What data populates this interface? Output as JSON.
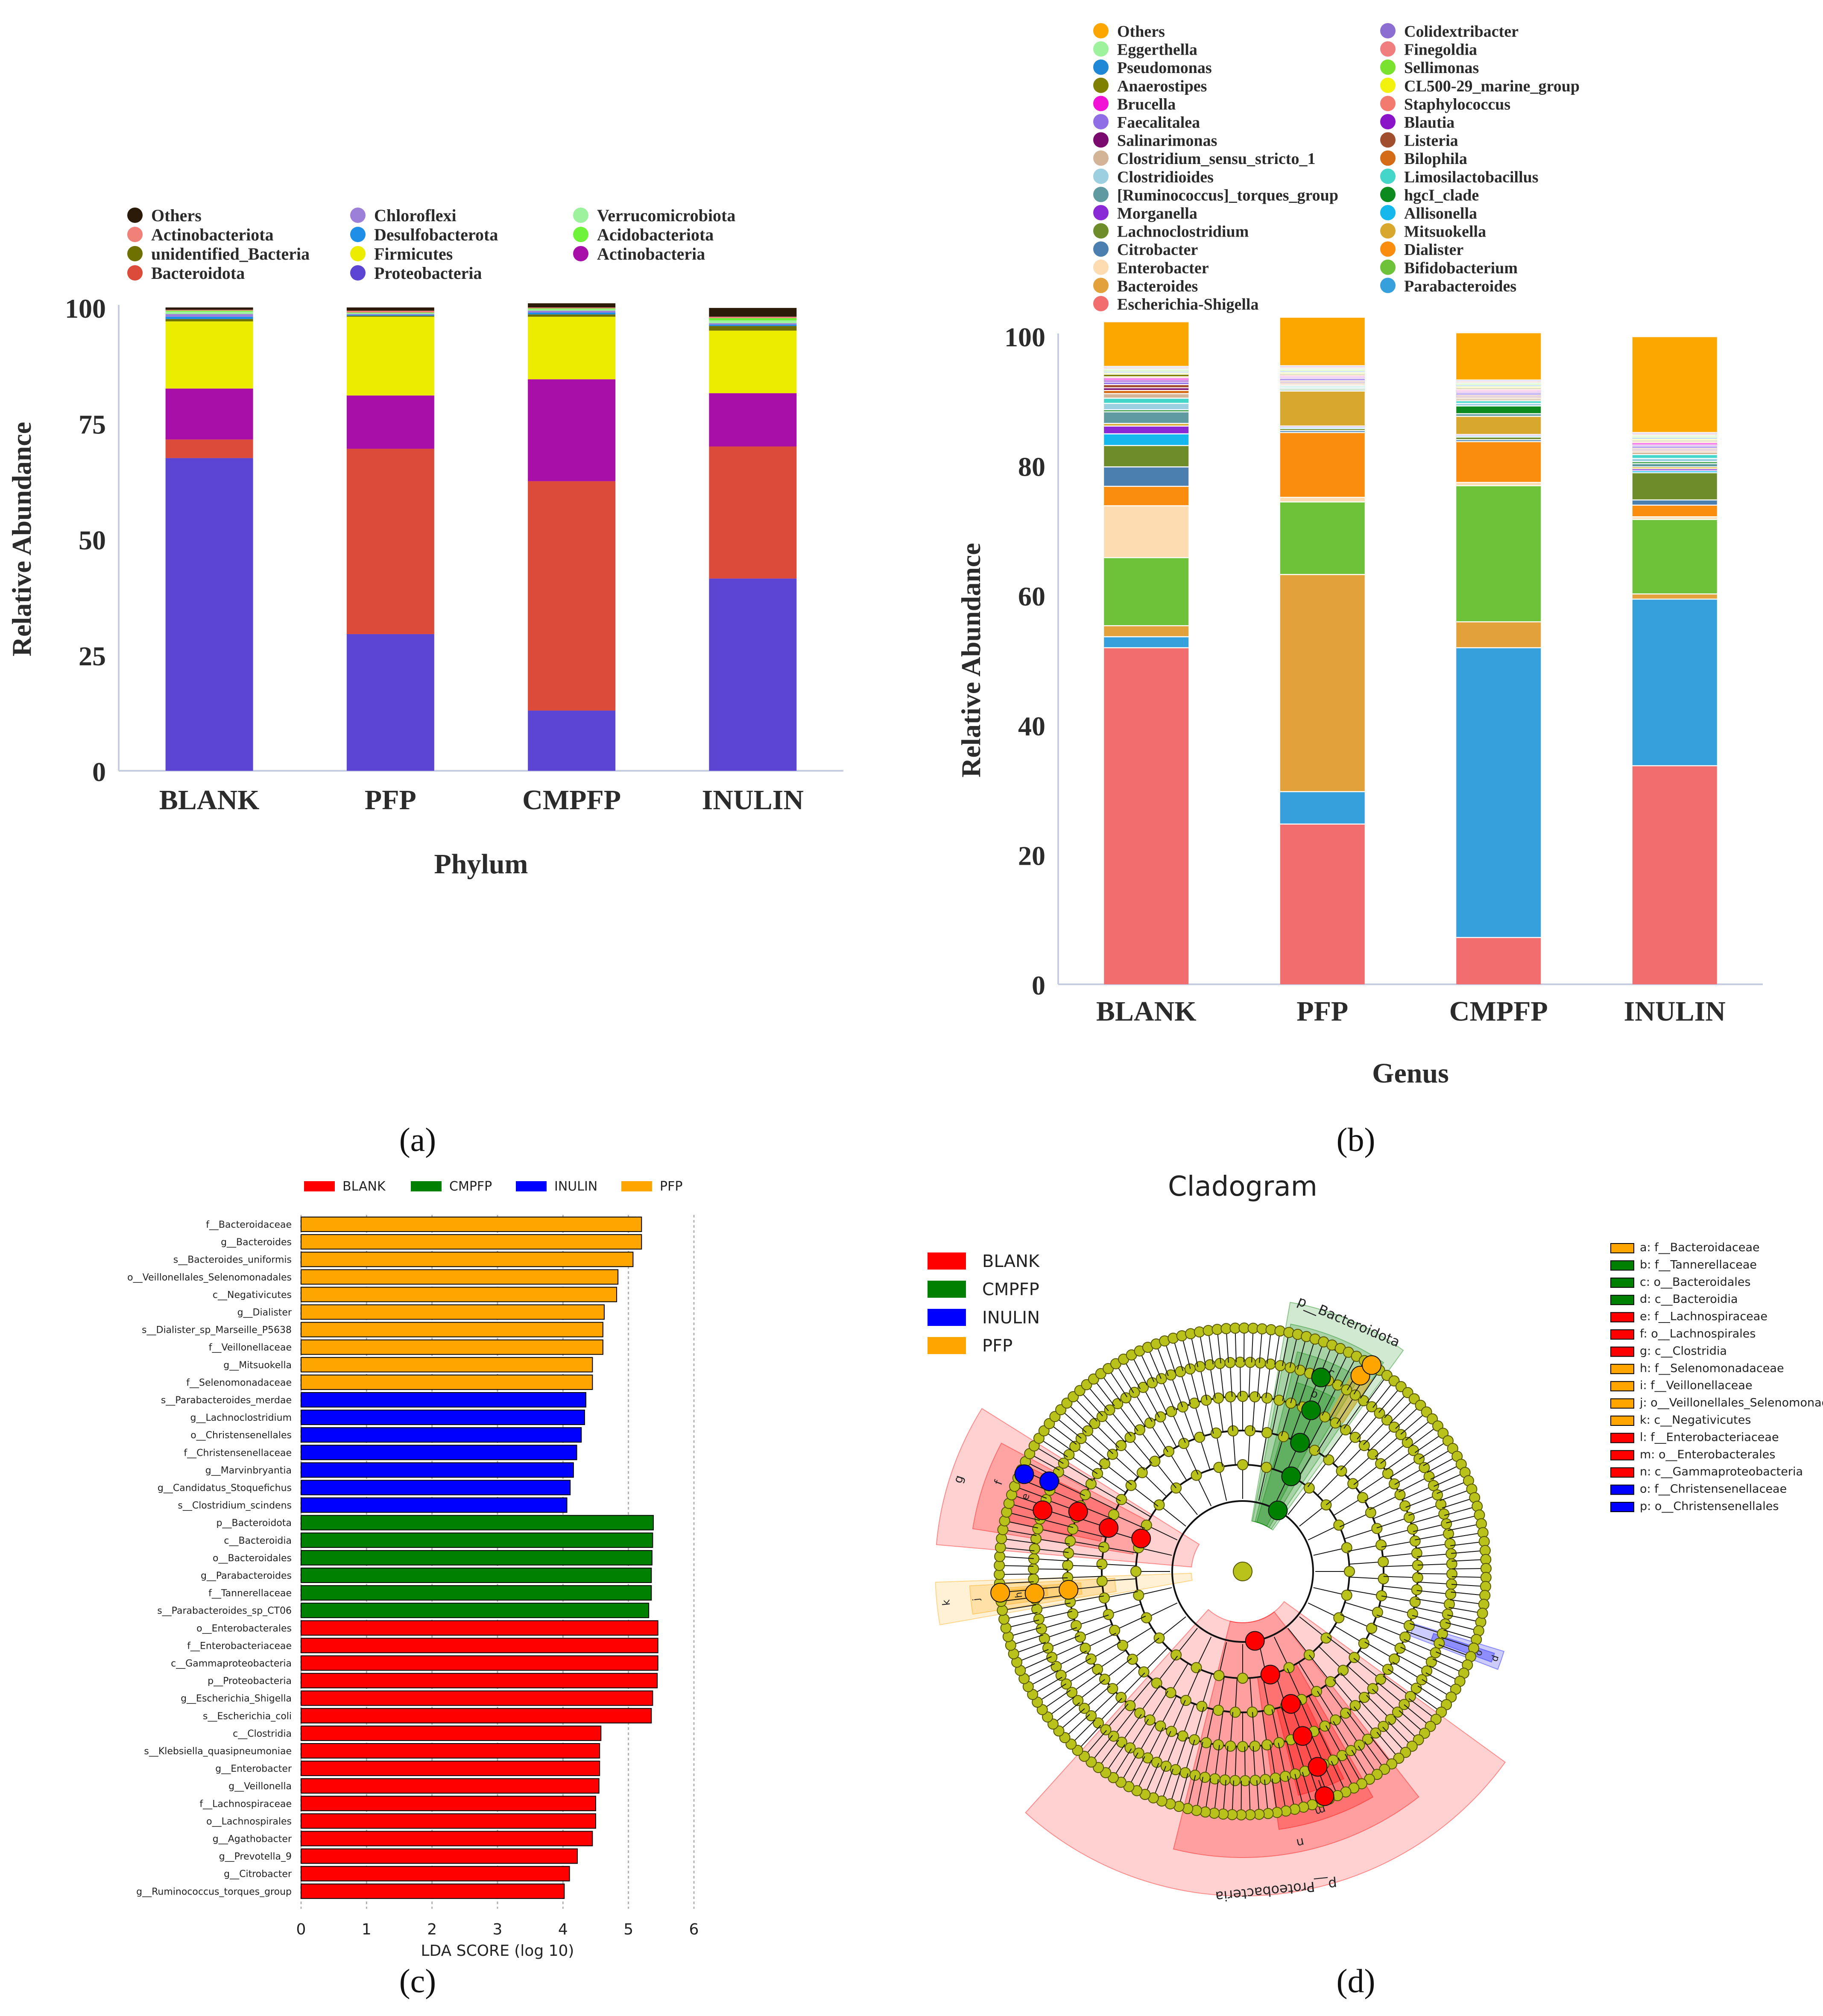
{
  "panels": {
    "a": {
      "label": "(a)",
      "chart_data": {
        "type": "bar",
        "stacked": true,
        "categories": [
          "BLANK",
          "PFP",
          "CMPFP",
          "INULIN"
        ],
        "xlabel": "Phylum",
        "ylabel": "Relative Abundance",
        "ylim": [
          0,
          100
        ],
        "yticks": [
          "0",
          "25",
          "50",
          "75",
          "100"
        ],
        "legend": [
          "Others",
          "Actinobacteriota",
          "unidentified_Bacteria",
          "Bacteroidota",
          "Chloroflexi",
          "Desulfobacterota",
          "Firmicutes",
          "Proteobacteria",
          "Verrucomicrobiota",
          "Acidobacteriota",
          "Actinobacteria"
        ],
        "series": [
          {
            "name": "Proteobacteria",
            "color": "#5b45d2",
            "values": [
              67.5,
              29.5,
              13,
              41.5
            ]
          },
          {
            "name": "Bacteroidota",
            "color": "#dc4a3a",
            "values": [
              4,
              40,
              49.5,
              28.5
            ]
          },
          {
            "name": "Actinobacteria",
            "color": "#a80fa8",
            "values": [
              11,
              11.5,
              22,
              11.5
            ]
          },
          {
            "name": "Firmicutes",
            "color": "#ecec00",
            "values": [
              14.5,
              17,
              13.5,
              13.5
            ]
          },
          {
            "name": "unidentified_Bacteria",
            "color": "#6e7000",
            "values": [
              0.5,
              0.2,
              0.5,
              1
            ]
          },
          {
            "name": "Desulfobacterota",
            "color": "#1f8ee6",
            "values": [
              0.5,
              0.2,
              0.4,
              0.3
            ]
          },
          {
            "name": "Chloroflexi",
            "color": "#9b7fd8",
            "values": [
              0.6,
              0.2,
              0.4,
              0.3
            ]
          },
          {
            "name": "Verrucomicrobiota",
            "color": "#9ef29e",
            "values": [
              0.5,
              0.2,
              0.3,
              0.6
            ]
          },
          {
            "name": "Acidobacteriota",
            "color": "#6ef23a",
            "values": [
              0.2,
              0.1,
              0.2,
              0.5
            ]
          },
          {
            "name": "Actinobacteriota",
            "color": "#f08078",
            "values": [
              0.2,
              0.4,
              0.2,
              0.3
            ]
          },
          {
            "name": "Others",
            "color": "#2b1a08",
            "values": [
              0.5,
              0.7,
              0.9,
              1.9
            ]
          }
        ]
      }
    },
    "b": {
      "label": "(b)",
      "chart_data": {
        "type": "bar",
        "stacked": true,
        "categories": [
          "BLANK",
          "PFP",
          "CMPFP",
          "INULIN"
        ],
        "xlabel": "Genus",
        "ylabel": "Relative Abundance",
        "ylim": [
          0,
          100
        ],
        "yticks": [
          "0",
          "20",
          "40",
          "60",
          "80",
          "100"
        ],
        "legend": [
          "Others",
          "Eggerthella",
          "Pseudomonas",
          "Anaerostipes",
          "Brucella",
          "Faecalitalea",
          "Salinarimonas",
          "Clostridium_sensu_stricto_1",
          "Clostridioides",
          "[Ruminococcus]_torques_group",
          "Morganella",
          "Lachnoclostridium",
          "Citrobacter",
          "Enterobacter",
          "Bacteroides",
          "Escherichia-Shigella",
          "Colidextribacter",
          "Finegoldia",
          "Sellimonas",
          "CL500-29_marine_group",
          "Staphylococcus",
          "Blautia",
          "Listeria",
          "Bilophila",
          "Limosilactobacillus",
          "hgcI_clade",
          "Allisonella",
          "Mitsuokella",
          "Dialister",
          "Bifidobacterium",
          "Parabacteroides"
        ],
        "series": [
          {
            "name": "Escherichia-Shigella",
            "color": "#f26d6d",
            "values": [
              52,
              24.8,
              7.3,
              33.8
            ]
          },
          {
            "name": "Parabacteroides",
            "color": "#36a0dc",
            "values": [
              1.7,
              5,
              44.7,
              25.7
            ]
          },
          {
            "name": "Bacteroides",
            "color": "#e3a13b",
            "values": [
              1.7,
              33.5,
              4,
              0.8
            ]
          },
          {
            "name": "Bifidobacterium",
            "color": "#6ec23a",
            "values": [
              10.5,
              11.2,
              21,
              11.5
            ]
          },
          {
            "name": "Enterobacter",
            "color": "#fcdcb0",
            "values": [
              8,
              0.7,
              0.5,
              0.4
            ]
          },
          {
            "name": "Dialister",
            "color": "#fa8c0e",
            "values": [
              3,
              10,
              6.3,
              1.8
            ]
          },
          {
            "name": "Citrobacter",
            "color": "#4a7fb0",
            "values": [
              3,
              0.3,
              0.3,
              0.8
            ]
          },
          {
            "name": "Lachnoclostridium",
            "color": "#6e8c2a",
            "values": [
              3.3,
              0.3,
              0.4,
              4.2
            ]
          },
          {
            "name": "Allisonella",
            "color": "#14b8ec",
            "values": [
              1.8,
              0.2,
              0.2,
              0.3
            ]
          },
          {
            "name": "Morganella",
            "color": "#8a2ad6",
            "values": [
              1.2,
              0.2,
              0.2,
              0.3
            ]
          },
          {
            "name": "Mitsuokella",
            "color": "#d8a72e",
            "values": [
              0.4,
              5.4,
              2.8,
              0.3
            ]
          },
          {
            "name": "[Ruminococcus]_torques_group",
            "color": "#5e9aa0",
            "values": [
              1.8,
              0.2,
              0.4,
              0.5
            ]
          },
          {
            "name": "hgcI_clade",
            "color": "#0d8a1e",
            "values": [
              0.3,
              0.2,
              1.2,
              0.3
            ]
          },
          {
            "name": "Clostridioides",
            "color": "#9ccfe0",
            "values": [
              1,
              0.2,
              0.4,
              0.5
            ]
          },
          {
            "name": "Limosilactobacillus",
            "color": "#44d6c8",
            "values": [
              0.8,
              0.2,
              0.4,
              0.6
            ]
          },
          {
            "name": "Clostridium_sensu_stricto_1",
            "color": "#d4b496",
            "values": [
              0.7,
              0.2,
              0.3,
              0.4
            ]
          },
          {
            "name": "Bilophila",
            "color": "#d46b16",
            "values": [
              0.5,
              0.2,
              0.2,
              0.2
            ]
          },
          {
            "name": "Salinarimonas",
            "color": "#7a0a6e",
            "values": [
              0.4,
              0.2,
              0.2,
              0.2
            ]
          },
          {
            "name": "Listeria",
            "color": "#a04e2e",
            "values": [
              0.5,
              0.2,
              0.2,
              0.2
            ]
          },
          {
            "name": "Faecalitalea",
            "color": "#8f6ee6",
            "values": [
              0.4,
              0.3,
              0.3,
              0.3
            ]
          },
          {
            "name": "Blautia",
            "color": "#8a14c8",
            "values": [
              0.3,
              0.2,
              0.2,
              0.2
            ]
          },
          {
            "name": "Brucella",
            "color": "#f212d6",
            "values": [
              0.3,
              0.2,
              0.2,
              0.3
            ]
          },
          {
            "name": "Staphylococcus",
            "color": "#f27a6e",
            "values": [
              0.2,
              0.2,
              0.2,
              0.2
            ]
          },
          {
            "name": "Anaerostipes",
            "color": "#808000",
            "values": [
              0.4,
              0.2,
              0.2,
              0.2
            ]
          },
          {
            "name": "CL500-29_marine_group",
            "color": "#f2f20e",
            "values": [
              0.2,
              0.2,
              0.2,
              0.2
            ]
          },
          {
            "name": "Pseudomonas",
            "color": "#1e88d6",
            "values": [
              0.2,
              0.2,
              0.2,
              0.2
            ]
          },
          {
            "name": "Sellimonas",
            "color": "#7ae22e",
            "values": [
              0.2,
              0.2,
              0.2,
              0.2
            ]
          },
          {
            "name": "Eggerthella",
            "color": "#9ef29e",
            "values": [
              0.2,
              0.2,
              0.2,
              0.2
            ]
          },
          {
            "name": "Finegoldia",
            "color": "#f07e7e",
            "values": [
              0.2,
              0.2,
              0.2,
              0.2
            ]
          },
          {
            "name": "Colidextribacter",
            "color": "#8c6ed2",
            "values": [
              0.2,
              0.2,
              0.2,
              0.2
            ]
          },
          {
            "name": "Others",
            "color": "#fca700",
            "values": [
              6.9,
              7.5,
              7.3,
              14.8
            ]
          }
        ]
      }
    },
    "c": {
      "label": "(c)",
      "chart_data": {
        "type": "bar",
        "orientation": "horizontal",
        "xlabel": "LDA SCORE (log 10)",
        "xlim": [
          0,
          6
        ],
        "xticks": [
          "0",
          "1",
          "2",
          "3",
          "4",
          "5",
          "6"
        ],
        "legend": [
          {
            "name": "BLANK",
            "color": "#ff0000"
          },
          {
            "name": "CMPFP",
            "color": "#008000"
          },
          {
            "name": "INULIN",
            "color": "#0000ff"
          },
          {
            "name": "PFP",
            "color": "#ffa500"
          }
        ],
        "bars": [
          {
            "label": "f__Bacteroidaceae",
            "group": "PFP",
            "value": 5.2
          },
          {
            "label": "g__Bacteroides",
            "group": "PFP",
            "value": 5.2
          },
          {
            "label": "s__Bacteroides_uniformis",
            "group": "PFP",
            "value": 5.07
          },
          {
            "label": "o__Veillonellales_Selenomonadales",
            "group": "PFP",
            "value": 4.84
          },
          {
            "label": "c__Negativicutes",
            "group": "PFP",
            "value": 4.82
          },
          {
            "label": "g__Dialister",
            "group": "PFP",
            "value": 4.63
          },
          {
            "label": "s__Dialister_sp_Marseille_P5638",
            "group": "PFP",
            "value": 4.61
          },
          {
            "label": "f__Veillonellaceae",
            "group": "PFP",
            "value": 4.61
          },
          {
            "label": "g__Mitsuokella",
            "group": "PFP",
            "value": 4.45
          },
          {
            "label": "f__Selenomonadaceae",
            "group": "PFP",
            "value": 4.45
          },
          {
            "label": "s__Parabacteroides_merdae",
            "group": "INULIN",
            "value": 4.35
          },
          {
            "label": "g__Lachnoclostridium",
            "group": "INULIN",
            "value": 4.33
          },
          {
            "label": "o__Christensenellales",
            "group": "INULIN",
            "value": 4.28
          },
          {
            "label": "f__Christensenellaceae",
            "group": "INULIN",
            "value": 4.21
          },
          {
            "label": "g__Marvinbryantia",
            "group": "INULIN",
            "value": 4.16
          },
          {
            "label": "g__Candidatus_Stoquefichus",
            "group": "INULIN",
            "value": 4.11
          },
          {
            "label": "s__Clostridium_scindens",
            "group": "INULIN",
            "value": 4.06
          },
          {
            "label": "p__Bacteroidota",
            "group": "CMPFP",
            "value": 5.38
          },
          {
            "label": "c__Bacteroidia",
            "group": "CMPFP",
            "value": 5.37
          },
          {
            "label": "o__Bacteroidales",
            "group": "CMPFP",
            "value": 5.36
          },
          {
            "label": "g__Parabacteroides",
            "group": "CMPFP",
            "value": 5.35
          },
          {
            "label": "f__Tannerellaceae",
            "group": "CMPFP",
            "value": 5.35
          },
          {
            "label": "s__Parabacteroides_sp_CT06",
            "group": "CMPFP",
            "value": 5.31
          },
          {
            "label": "o__Enterobacterales",
            "group": "BLANK",
            "value": 5.45
          },
          {
            "label": "f__Enterobacteriaceae",
            "group": "BLANK",
            "value": 5.45
          },
          {
            "label": "c__Gammaproteobacteria",
            "group": "BLANK",
            "value": 5.45
          },
          {
            "label": "p__Proteobacteria",
            "group": "BLANK",
            "value": 5.44
          },
          {
            "label": "g__Escherichia_Shigella",
            "group": "BLANK",
            "value": 5.37
          },
          {
            "label": "s__Escherichia_coli",
            "group": "BLANK",
            "value": 5.35
          },
          {
            "label": "c__Clostridia",
            "group": "BLANK",
            "value": 4.58
          },
          {
            "label": "s__Klebsiella_quasipneumoniae",
            "group": "BLANK",
            "value": 4.56
          },
          {
            "label": "g__Enterobacter",
            "group": "BLANK",
            "value": 4.56
          },
          {
            "label": "g__Veillonella",
            "group": "BLANK",
            "value": 4.55
          },
          {
            "label": "f__Lachnospiraceae",
            "group": "BLANK",
            "value": 4.5
          },
          {
            "label": "o__Lachnospirales",
            "group": "BLANK",
            "value": 4.5
          },
          {
            "label": "g__Agathobacter",
            "group": "BLANK",
            "value": 4.45
          },
          {
            "label": "g__Prevotella_9",
            "group": "BLANK",
            "value": 4.22
          },
          {
            "label": "g__Citrobacter",
            "group": "BLANK",
            "value": 4.1
          },
          {
            "label": "g__Ruminococcus_torques_group",
            "group": "BLANK",
            "value": 4.02
          }
        ]
      }
    },
    "d": {
      "label": "(d)",
      "title": "Cladogram",
      "legend": [
        {
          "name": "BLANK",
          "color": "#ff0000"
        },
        {
          "name": "CMPFP",
          "color": "#008000"
        },
        {
          "name": "INULIN",
          "color": "#0000ff"
        },
        {
          "name": "PFP",
          "color": "#ffa500"
        }
      ],
      "key": [
        {
          "text": "a: f__Bacteroidaceae",
          "color": "#ffa500"
        },
        {
          "text": "b: f__Tannerellaceae",
          "color": "#008000"
        },
        {
          "text": "c: o__Bacteroidales",
          "color": "#008000"
        },
        {
          "text": "d: c__Bacteroidia",
          "color": "#008000"
        },
        {
          "text": "e: f__Lachnospiraceae",
          "color": "#ff0000"
        },
        {
          "text": "f: o__Lachnospirales",
          "color": "#ff0000"
        },
        {
          "text": "g: c__Clostridia",
          "color": "#ff0000"
        },
        {
          "text": "h: f__Selenomonadaceae",
          "color": "#ffa500"
        },
        {
          "text": "i: f__Veillonellaceae",
          "color": "#ffa500"
        },
        {
          "text": "j: o__Veillonellales_Selenomonadales",
          "color": "#ffa500"
        },
        {
          "text": "k: c__Negativicutes",
          "color": "#ffa500"
        },
        {
          "text": "l: f__Enterobacteriaceae",
          "color": "#ff0000"
        },
        {
          "text": "m: o__Enterobacterales",
          "color": "#ff0000"
        },
        {
          "text": "n: c__Gammaproteobacteria",
          "color": "#ff0000"
        },
        {
          "text": "o: f__Christensenellaceae",
          "color": "#0000ff"
        },
        {
          "text": "p: o__Christensenellales",
          "color": "#0000ff"
        }
      ],
      "sectors": [
        {
          "label": "p__Bacteroidota",
          "color": "#008000"
        },
        {
          "label": "d",
          "color": "#008000"
        },
        {
          "label": "c",
          "color": "#008000"
        },
        {
          "label": "b",
          "color": "#008000"
        },
        {
          "label": "a",
          "color": "#ffa500"
        },
        {
          "label": "p__Proteobacteria",
          "color": "#ff0000"
        },
        {
          "label": "n",
          "color": "#ff0000"
        },
        {
          "label": "m",
          "color": "#ff0000"
        },
        {
          "label": "l",
          "color": "#ff0000"
        },
        {
          "label": "g",
          "color": "#ff0000"
        },
        {
          "label": "f",
          "color": "#ff0000"
        },
        {
          "label": "e",
          "color": "#ff0000"
        },
        {
          "label": "k",
          "color": "#ffa500"
        },
        {
          "label": "j",
          "color": "#ffa500"
        },
        {
          "label": "i",
          "color": "#ffa500"
        },
        {
          "label": "h",
          "color": "#ffa500"
        },
        {
          "label": "p",
          "color": "#0000ff"
        },
        {
          "label": "o",
          "color": "#0000ff"
        }
      ]
    }
  }
}
